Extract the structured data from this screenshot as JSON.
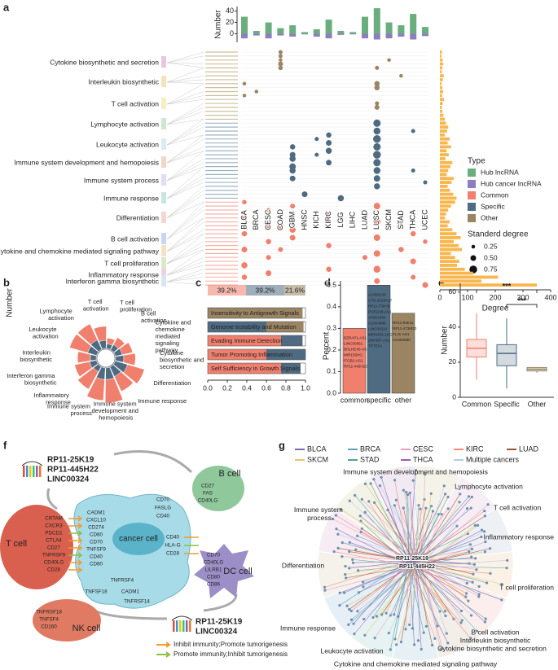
{
  "panel_labels": [
    "a",
    "b",
    "c",
    "d",
    "e",
    "f",
    "g"
  ],
  "chart_data": [
    {
      "type": "diverging_bar",
      "ylabel": "Number",
      "categories": [
        "BLCA",
        "BRCA",
        "CESC",
        "COAD",
        "GBM",
        "HNSC",
        "KICH",
        "KIRC",
        "LGG",
        "LIHC",
        "LUAD",
        "LUSC",
        "SKCM",
        "STAD",
        "THCA",
        "UCEC"
      ],
      "series": [
        {
          "name": "Hub lncRNA",
          "color": "#6aae7d",
          "values": [
            30,
            5,
            20,
            10,
            15,
            3,
            8,
            25,
            5,
            3,
            30,
            45,
            20,
            15,
            35,
            12
          ]
        },
        {
          "name": "Hub cancer lncRNA",
          "color": "#8c7ec0",
          "values": [
            -8,
            -3,
            -8,
            -3,
            -5,
            -1,
            -5,
            -8,
            -2,
            -1,
            -8,
            -10,
            -8,
            -5,
            -10,
            -4
          ]
        }
      ],
      "ylim": [
        -15,
        48
      ],
      "yticks": [
        0,
        20,
        40
      ]
    },
    {
      "type": "dotmatrix",
      "legend_title": "Type",
      "size_title": "Standerd degree",
      "size_legend": [
        0.25,
        {
          "value": 0.5,
          "label": "0.50"
        },
        0.75
      ],
      "pathways": [
        "Cytokine biosynthetic and secretion",
        "Interleukin biosynthetic",
        "T cell activation",
        "Lymphocyte activation",
        "Leukocyte activation",
        "Immune system development and hemopoiesis",
        "Immune system process",
        "Immune response",
        "Differentiation",
        "B cell activation",
        "Cytokine and chemokine mediated signaling pathway",
        "T cell proliferation",
        "Inflammatory response",
        "Interferon gamma biosynthetic"
      ],
      "series": [
        {
          "name": "Common",
          "color": "#f07f6e",
          "points": [
            [
              0,
              38,
              0.35
            ],
            [
              0,
              42,
              0.4
            ],
            [
              0,
              46,
              0.45
            ],
            [
              0,
              50,
              0.5
            ],
            [
              0,
              54,
              0.55
            ],
            [
              0,
              57,
              0.45
            ],
            [
              2,
              40,
              0.3
            ],
            [
              2,
              44,
              0.35
            ],
            [
              2,
              48,
              0.45
            ],
            [
              2,
              52,
              0.4
            ],
            [
              2,
              56,
              0.5
            ],
            [
              3,
              44,
              0.45
            ],
            [
              3,
              50,
              0.4
            ],
            [
              4,
              39,
              0.4
            ],
            [
              4,
              45,
              0.55
            ],
            [
              4,
              47,
              0.5
            ],
            [
              7,
              41,
              0.4
            ],
            [
              7,
              49,
              0.45
            ],
            [
              7,
              55,
              0.45
            ],
            [
              10,
              42,
              0.35
            ],
            [
              10,
              52,
              0.4
            ],
            [
              11,
              39,
              0.6
            ],
            [
              11,
              43,
              0.65
            ],
            [
              11,
              47,
              0.6
            ],
            [
              11,
              51,
              0.6
            ],
            [
              11,
              55,
              0.65
            ],
            [
              11,
              58,
              0.5
            ],
            [
              13,
              44,
              0.4
            ],
            [
              13,
              50,
              0.45
            ],
            [
              14,
              46,
              0.45
            ],
            [
              14,
              53,
              0.5
            ],
            [
              14,
              57,
              0.4
            ],
            [
              15,
              48,
              0.35
            ],
            [
              15,
              59,
              0.5
            ]
          ]
        },
        {
          "name": "Specific",
          "color": "#4e6b82",
          "points": [
            [
              4,
              24,
              0.45
            ],
            [
              4,
              26,
              0.5
            ],
            [
              4,
              27,
              0.55
            ],
            [
              4,
              29,
              0.6
            ],
            [
              4,
              30,
              0.55
            ],
            [
              4,
              32,
              0.5
            ],
            [
              7,
              21,
              0.45
            ],
            [
              7,
              23,
              0.5
            ],
            [
              7,
              25,
              0.55
            ],
            [
              7,
              28,
              0.5
            ],
            [
              6,
              22,
              0.3
            ],
            [
              6,
              26,
              0.3
            ],
            [
              11,
              18,
              0.7
            ],
            [
              11,
              20,
              0.65
            ],
            [
              11,
              22,
              0.75
            ],
            [
              11,
              24,
              0.7
            ],
            [
              11,
              26,
              0.75
            ],
            [
              11,
              28,
              0.7
            ],
            [
              11,
              30,
              0.65
            ],
            [
              11,
              32,
              0.6
            ],
            [
              11,
              34,
              0.55
            ],
            [
              5,
              36,
              0.5
            ],
            [
              8,
              37,
              0.55
            ],
            [
              14,
              20,
              0.3
            ],
            [
              14,
              30,
              0.3
            ],
            [
              15,
              33,
              0.3
            ]
          ]
        },
        {
          "name": "Other",
          "color": "#9a8462",
          "points": [
            [
              3,
              0,
              0.3
            ],
            [
              3,
              1,
              0.3
            ],
            [
              3,
              2,
              0.25
            ],
            [
              3,
              3,
              0.4
            ],
            [
              3,
              4,
              0.35
            ],
            [
              0,
              8,
              0.25
            ],
            [
              0,
              11,
              0.25
            ],
            [
              1,
              10,
              0.25
            ],
            [
              11,
              4,
              0.3
            ],
            [
              11,
              8,
              0.45
            ],
            [
              11,
              9,
              0.45
            ],
            [
              11,
              13,
              0.3
            ],
            [
              11,
              14,
              0.4
            ],
            [
              12,
              2,
              0.25
            ],
            [
              13,
              6,
              0.25
            ]
          ]
        }
      ]
    },
    {
      "type": "hbar",
      "xlabel": "Degree",
      "color": "#f8b64c",
      "xlim": [
        0,
        400
      ],
      "xticks": [
        0,
        100,
        200,
        300,
        400
      ],
      "values": [
        8,
        6,
        10,
        12,
        9,
        7,
        14,
        11,
        6,
        9,
        12,
        8,
        15,
        10,
        7,
        9,
        13,
        18,
        22,
        30,
        26,
        18,
        35,
        28,
        40,
        24,
        32,
        20,
        45,
        38,
        30,
        25,
        50,
        42,
        28,
        36,
        48,
        60,
        55,
        40,
        30,
        22,
        18,
        35,
        28,
        45,
        60,
        75,
        50,
        68,
        80,
        40,
        55,
        70,
        62,
        90,
        120,
        210,
        150,
        350
      ]
    },
    {
      "type": "rose",
      "ylabel": "Number",
      "ylim": [
        0,
        60
      ],
      "categories": [
        "T cell proliferation",
        "B cell activation",
        "Cytokine and chemokine mediated signaling pathway",
        "Cytokine biosynthetic and secretion",
        "Differentiation",
        "Immune response",
        "Immune system development and hemopoiesis",
        "Immune system process",
        "Inflammatory response",
        "Interferon gamma biosynthetic",
        "Interleukin biosynthetic",
        "Leukocyte activation",
        "Lymphocyte activation",
        "T cell activation"
      ],
      "series": [
        {
          "color": "#4e6b82",
          "values": [
            8,
            10,
            12,
            14,
            22,
            18,
            20,
            20,
            10,
            12,
            10,
            16,
            18,
            14
          ]
        },
        {
          "color": "#f07f6e",
          "values": [
            10,
            14,
            18,
            20,
            30,
            28,
            40,
            36,
            34,
            26,
            22,
            32,
            30,
            24
          ]
        }
      ]
    },
    {
      "type": "stacked_hbar",
      "summary": {
        "values": [
          39.2,
          39.2,
          21.6
        ],
        "value_labels": [
          "39.2%",
          "39.2%",
          "21.6%"
        ],
        "lim": [
          0,
          100
        ]
      },
      "categories": [
        "Insensitivity to Antigrowth Signals",
        "Genome Instability and Mutation",
        "Evading Immune Detection",
        "Tumor Promoting Inflammation",
        "Self Sufficiency in Growth Signals"
      ],
      "series": [
        {
          "color": "#f07f6e",
          "values": [
            0,
            0,
            0.75,
            0.6,
            0.75
          ]
        },
        {
          "color": "#4e6b82",
          "values": [
            0,
            0.6,
            0.22,
            0.4,
            0.2
          ]
        },
        {
          "color": "#9a8462",
          "values": [
            0.97,
            0.38,
            0,
            0,
            0
          ]
        }
      ],
      "xlim": [
        0,
        1
      ],
      "xticks": [
        {
          "value": 0,
          "label": "0.0"
        },
        0.2,
        0.4,
        0.6,
        0.8,
        {
          "value": 1,
          "label": "1.0"
        }
      ]
    },
    {
      "type": "bar",
      "ylabel": "Percent",
      "categories": [
        "common",
        "specific",
        "other"
      ],
      "values": [
        0.3,
        0.5,
        0.37
      ],
      "colors": [
        "#f07f6e",
        "#4e6b82",
        "#9a8462"
      ],
      "ylim": [
        0,
        0.52
      ],
      "yticks": [
        {
          "value": 0,
          "label": "0.0"
        },
        0.1,
        0.2,
        0.3,
        0.4,
        0.5
      ],
      "genes": [
        [
          "BZRAP1-AS1",
          "LINC00861",
          "BHLHE40-AS1",
          "MIR155HG",
          "ITGB2-AS1",
          "RP11-445H22"
        ],
        [
          "AC006129",
          "CTD-2020K17",
          "RP11-750H9",
          "PCED1B-AS1",
          "AP001056",
          "AC004986",
          "LINC00324",
          "MIR4435-1HG",
          "ZNF667-AS1",
          "TPTEP1"
        ],
        [
          "RP11-84E11",
          "RP11-473M20",
          "FLJ1-AS1",
          "AC092580"
        ]
      ]
    },
    {
      "type": "box",
      "ylabel": "Number",
      "categories": [
        "Common",
        "Specific",
        "Other"
      ],
      "colors": [
        "#f07f6e",
        "#4e6b82",
        "#9a8462"
      ],
      "ylim": [
        0,
        65
      ],
      "yticks": [
        0,
        20,
        40,
        60
      ],
      "boxes": [
        {
          "min": 10,
          "q1": 23,
          "median": 28,
          "q3": 33,
          "max": 48
        },
        {
          "min": 5,
          "q1": 18,
          "median": 25,
          "q3": 30,
          "max": 45
        },
        {
          "min": 14,
          "q1": 15,
          "median": 16,
          "q3": 17,
          "max": 17
        }
      ],
      "annotations": [
        "***",
        "***"
      ]
    }
  ],
  "diagram": {
    "lncrnas_top": [
      "RP11-25K19",
      "RP11-445H22",
      "LINC00324"
    ],
    "lncrnas_bottom": [
      "RP11-25K19",
      "LINC00324"
    ],
    "cells": [
      "B cell",
      "T cell",
      "NK cell",
      "DC cell",
      "cancer cell"
    ],
    "molecules": [
      "CRTAM",
      "CXCR3",
      "PDCD1",
      "CTLA4",
      "CD27",
      "TNFRSF9",
      "CD40LG",
      "CD28",
      "CADM1",
      "CXCL10",
      "CD274",
      "CD80",
      "CD70",
      "TNFSF9",
      "CD40",
      "CD80",
      "TNFRSF4",
      "TNFSF18",
      "CADM1",
      "TNFRSF14",
      "CD70",
      "FASLG",
      "CD40",
      "CD27",
      "FAS",
      "CD40LG",
      "CD40",
      "HLA-G",
      "CD28",
      "CD70",
      "CD40LG",
      "LILRB1",
      "CD80",
      "CD86",
      "TNFRSF18",
      "TNFSF4",
      "CD160"
    ],
    "legend": [
      {
        "label": "Inhibit immunity;Promote tumorigenesis",
        "color": "#f39a2e"
      },
      {
        "label": "Promote immunity;Inhibit tumorigenesis",
        "color": "#8fbf3f"
      }
    ]
  },
  "network": {
    "legend": [
      {
        "name": "BLCA",
        "color": "#7b68b5"
      },
      {
        "name": "BRCA",
        "color": "#5aa5b5"
      },
      {
        "name": "CESC",
        "color": "#e8a0c0"
      },
      {
        "name": "KIRC",
        "color": "#f08a7a"
      },
      {
        "name": "LUAD",
        "color": "#a0522d"
      },
      {
        "name": "SKCM",
        "color": "#e6c46a"
      },
      {
        "name": "STAD",
        "color": "#4aa3a0"
      },
      {
        "name": "THCA",
        "color": "#9b59b6"
      },
      {
        "name": "Multiple cancers",
        "color": "#b7c9e8"
      }
    ],
    "terms": [
      {
        "label": "Immune system development and hemopoiesis",
        "color": "#a99a4e"
      },
      {
        "label": "Lymphocyte activation",
        "color": "#c070b0"
      },
      {
        "label": "T cell activation",
        "color": "#6a80b0"
      },
      {
        "label": "Immune system process",
        "color": "#d4883a"
      },
      {
        "label": "Inflammatory response",
        "color": "#e07060"
      },
      {
        "label": "Differentiation",
        "color": "#a07040"
      },
      {
        "label": "T cell proliferation",
        "color": "#3a8ab0"
      },
      {
        "label": "Immune response",
        "color": "#3a9a90"
      },
      {
        "label": "B cell activation",
        "color": "#3a7ab5"
      },
      {
        "label": "Interleukin biosynthetic",
        "color": "#b09060"
      },
      {
        "label": "Cytokine biosynthetic and secretion",
        "color": "#c060a0"
      },
      {
        "label": "Leukocyte activation",
        "color": "#a0a040"
      },
      {
        "label": "Cytokine and chemokine mediated signaling pathway",
        "color": "#9050a0"
      }
    ],
    "hubs": [
      "RP11-25K19",
      "RP11-445H22"
    ]
  }
}
